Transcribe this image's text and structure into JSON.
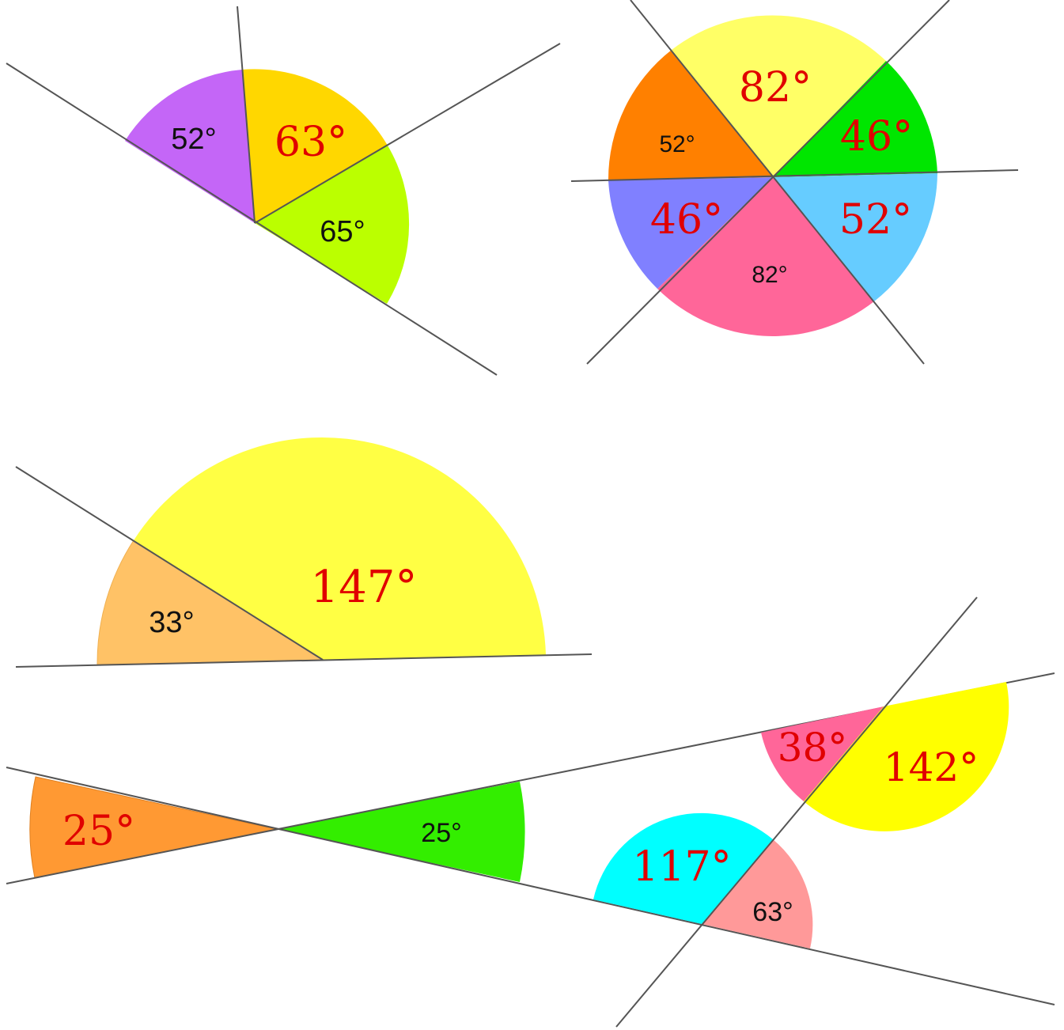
{
  "figures": [
    {
      "id": "fig1",
      "angles": [
        {
          "label": "52°",
          "value": 52,
          "color": "#c466f7",
          "style": "given"
        },
        {
          "label": "63°",
          "value": 63,
          "color": "#ffd700",
          "style": "answer"
        },
        {
          "label": "65°",
          "value": 65,
          "color": "#bbff00",
          "style": "given"
        }
      ]
    },
    {
      "id": "fig2",
      "angles": [
        {
          "label": "82°",
          "value": 82,
          "color": "#ffff66",
          "style": "answer"
        },
        {
          "label": "46°",
          "value": 46,
          "color": "#00e600",
          "style": "answer"
        },
        {
          "label": "52°",
          "value": 52,
          "color": "#66ccff",
          "style": "answer"
        },
        {
          "label": "82°",
          "value": 82,
          "color": "#ff6699",
          "style": "given"
        },
        {
          "label": "46°",
          "value": 46,
          "color": "#8080ff",
          "style": "answer"
        },
        {
          "label": "52°",
          "value": 52,
          "color": "#ff8000",
          "style": "given"
        }
      ]
    },
    {
      "id": "fig3",
      "angles": [
        {
          "label": "33°",
          "value": 33,
          "color": "#ffc266",
          "style": "given"
        },
        {
          "label": "147°",
          "value": 147,
          "color": "#ffff44",
          "style": "answer"
        }
      ]
    },
    {
      "id": "fig4",
      "angles": [
        {
          "label": "25°",
          "value": 25,
          "color": "#ff9933",
          "style": "answer"
        },
        {
          "label": "25°",
          "value": 25,
          "color": "#33ee00",
          "style": "given"
        }
      ]
    },
    {
      "id": "fig5",
      "angles": [
        {
          "label": "38°",
          "value": 38,
          "color": "#ff6699",
          "style": "answer"
        },
        {
          "label": "142°",
          "value": 142,
          "color": "#ffff00",
          "style": "answer"
        },
        {
          "label": "117°",
          "value": 117,
          "color": "#00ffff",
          "style": "answer"
        },
        {
          "label": "63°",
          "value": 63,
          "color": "#ff9999",
          "style": "given"
        }
      ]
    }
  ]
}
